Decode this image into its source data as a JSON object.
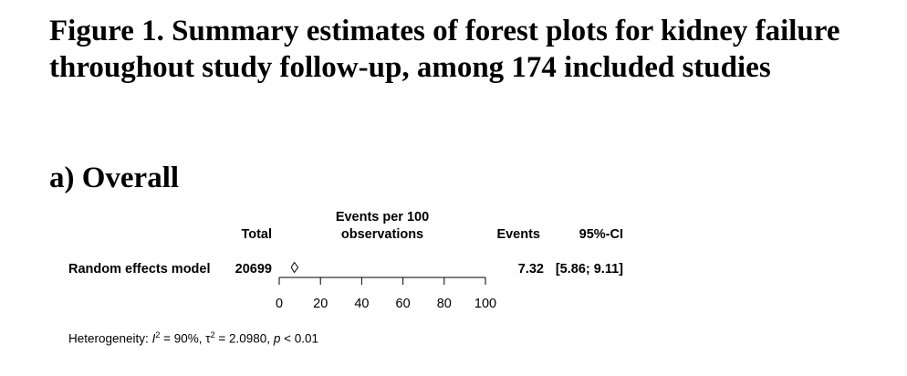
{
  "figure_title": "Figure 1. Summary estimates of forest plots for kidney failure throughout study follow-up, among 174 included studies",
  "panel_title": "a) Overall",
  "chart_data": {
    "type": "forest",
    "columns": {
      "total": "Total",
      "axis_header_line1": "Events per 100",
      "axis_header_line2": "observations",
      "events": "Events",
      "ci": "95%-CI"
    },
    "rows": [
      {
        "label": "Random effects model",
        "total": "20699",
        "estimate": 7.32,
        "ci_low": 5.86,
        "ci_high": 9.11,
        "events_text": "7.32",
        "ci_text": "[5.86; 9.11]"
      }
    ],
    "xlim": [
      0,
      100
    ],
    "ticks": [
      0,
      20,
      40,
      60,
      80,
      100
    ],
    "tick_labels": [
      "0",
      "20",
      "40",
      "60",
      "80",
      "100"
    ],
    "heterogeneity": {
      "prefix": "Heterogeneity: ",
      "i2_symbol": "I",
      "i2_value": " = 90%, ",
      "tau2_symbol": "τ",
      "tau2_value": " = 2.0980, ",
      "p_symbol": "p",
      "p_value": " < 0.01"
    }
  }
}
